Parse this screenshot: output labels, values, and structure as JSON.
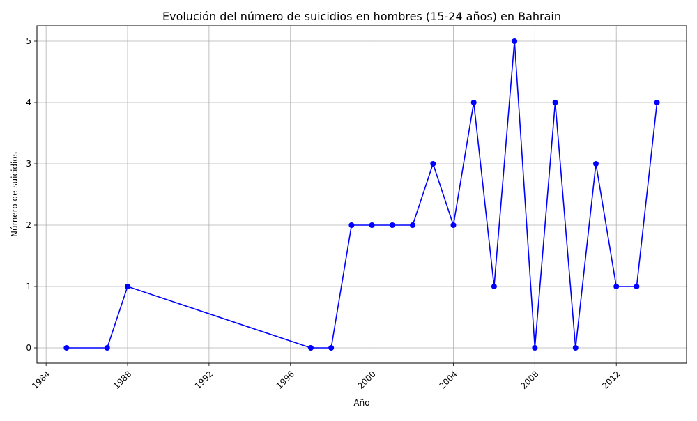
{
  "chart_data": {
    "type": "line",
    "title": "Evolución del número de suicidios en hombres (15-24 años) en Bahrain",
    "xlabel": "Año",
    "ylabel": "Número de suicidios",
    "x_ticks": [
      "1984",
      "1988",
      "1992",
      "1996",
      "2000",
      "2004",
      "2008",
      "2012"
    ],
    "y_ticks": [
      "0",
      "1",
      "2",
      "3",
      "4",
      "5"
    ],
    "x": [
      1985,
      1987,
      1988,
      1997,
      1998,
      1999,
      2000,
      2001,
      2002,
      2003,
      2004,
      2005,
      2006,
      2007,
      2008,
      2009,
      2010,
      2011,
      2012,
      2013,
      2014
    ],
    "values": [
      0,
      0,
      1,
      0,
      0,
      2,
      2,
      2,
      2,
      3,
      2,
      4,
      1,
      5,
      0,
      4,
      0,
      3,
      1,
      1,
      4
    ],
    "xlim": [
      1983.55,
      2015.45
    ],
    "ylim": [
      -0.25,
      5.25
    ],
    "grid": true,
    "line_color": "#0000ff",
    "marker_color": "#0000ff"
  }
}
